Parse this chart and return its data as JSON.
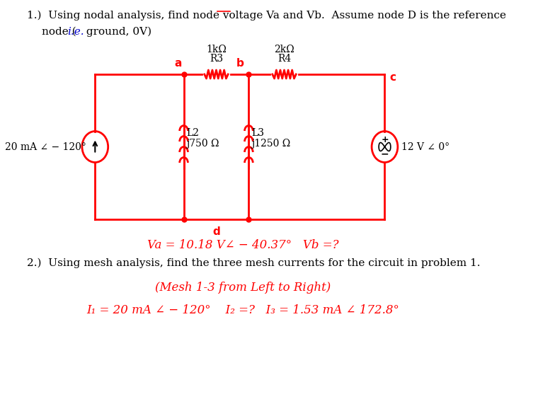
{
  "title1": "1.)  Using nodal analysis, find node voltage Va and Vb.  Assume node D is the reference",
  "title2": "node (",
  "title2b": "i.e.",
  "title2c": " ground, 0V)",
  "circuit_color": "#ff0000",
  "text_color": "#000000",
  "red_color": "#ff0000",
  "node_a_label": "a",
  "node_b_label": "b",
  "node_c_label": "c",
  "node_d_label": "d",
  "r3_label": "R3",
  "r3_val": "1kΩ",
  "r4_label": "R4",
  "r4_val": "2kΩ",
  "l2_label": "L2",
  "l2_val": "j750 Ω",
  "l3_label": "L3",
  "l3_val": "j1250 Ω",
  "cs_label": "20 mA ∠ − 120°",
  "vs_label": "12 V ∠ 0°",
  "va_result": "Va = 10.18 V∠ − 40.37°   Vb =?",
  "prob2_text": "2.)  Using mesh analysis, find the three mesh currents for the circuit in problem 1.",
  "mesh_subtitle": "(Mesh 1-3 from Left to Right)",
  "mesh_results": "I₁ = 20 mA ∠ − 120°    I₂ =?   I₃ = 1.53 mA ∠ 172.8°",
  "bg_color": "#ffffff"
}
